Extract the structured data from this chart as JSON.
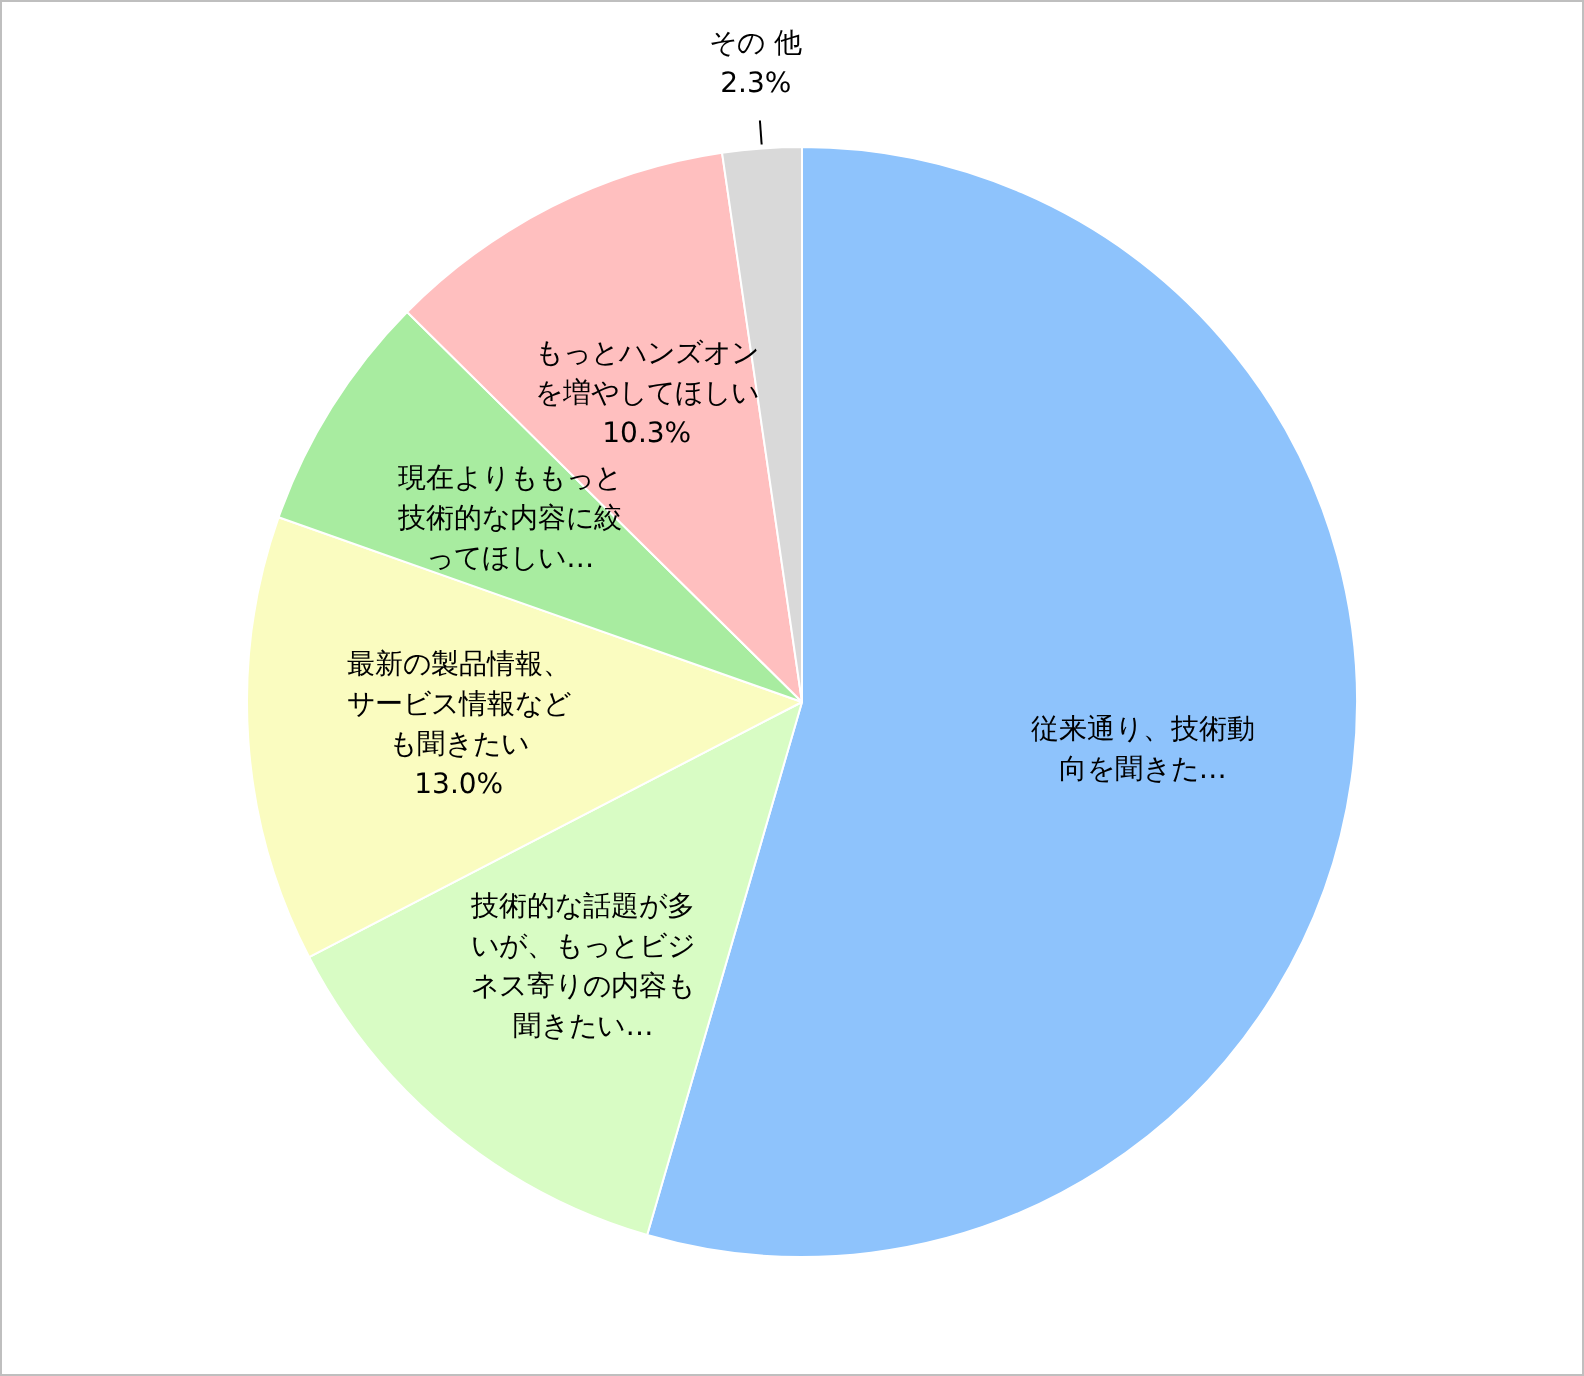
{
  "chart_data": {
    "type": "pie",
    "categories": [
      "従来通り、技術動向を聞きた…",
      "技術的な話題が多いが、もっとビジネス寄りの内容も聞きたい…",
      "最新の製品情報、サービス情報なども聞きたい",
      "現在よりももっと技術的な内容に絞ってほしい…",
      "もっとハンズオンを増やしてほしい",
      "その 他"
    ],
    "values": [
      54.5,
      12.9,
      13.0,
      7.0,
      10.3,
      2.3
    ],
    "colors": [
      "#8ec3fc",
      "#d8fcc4",
      "#fafcc0",
      "#a8eca0",
      "#ffbfbf",
      "#d9d9d9"
    ],
    "value_labels": [
      null,
      null,
      "13.0%",
      null,
      "10.3%",
      "2.3%"
    ],
    "legend": false
  }
}
